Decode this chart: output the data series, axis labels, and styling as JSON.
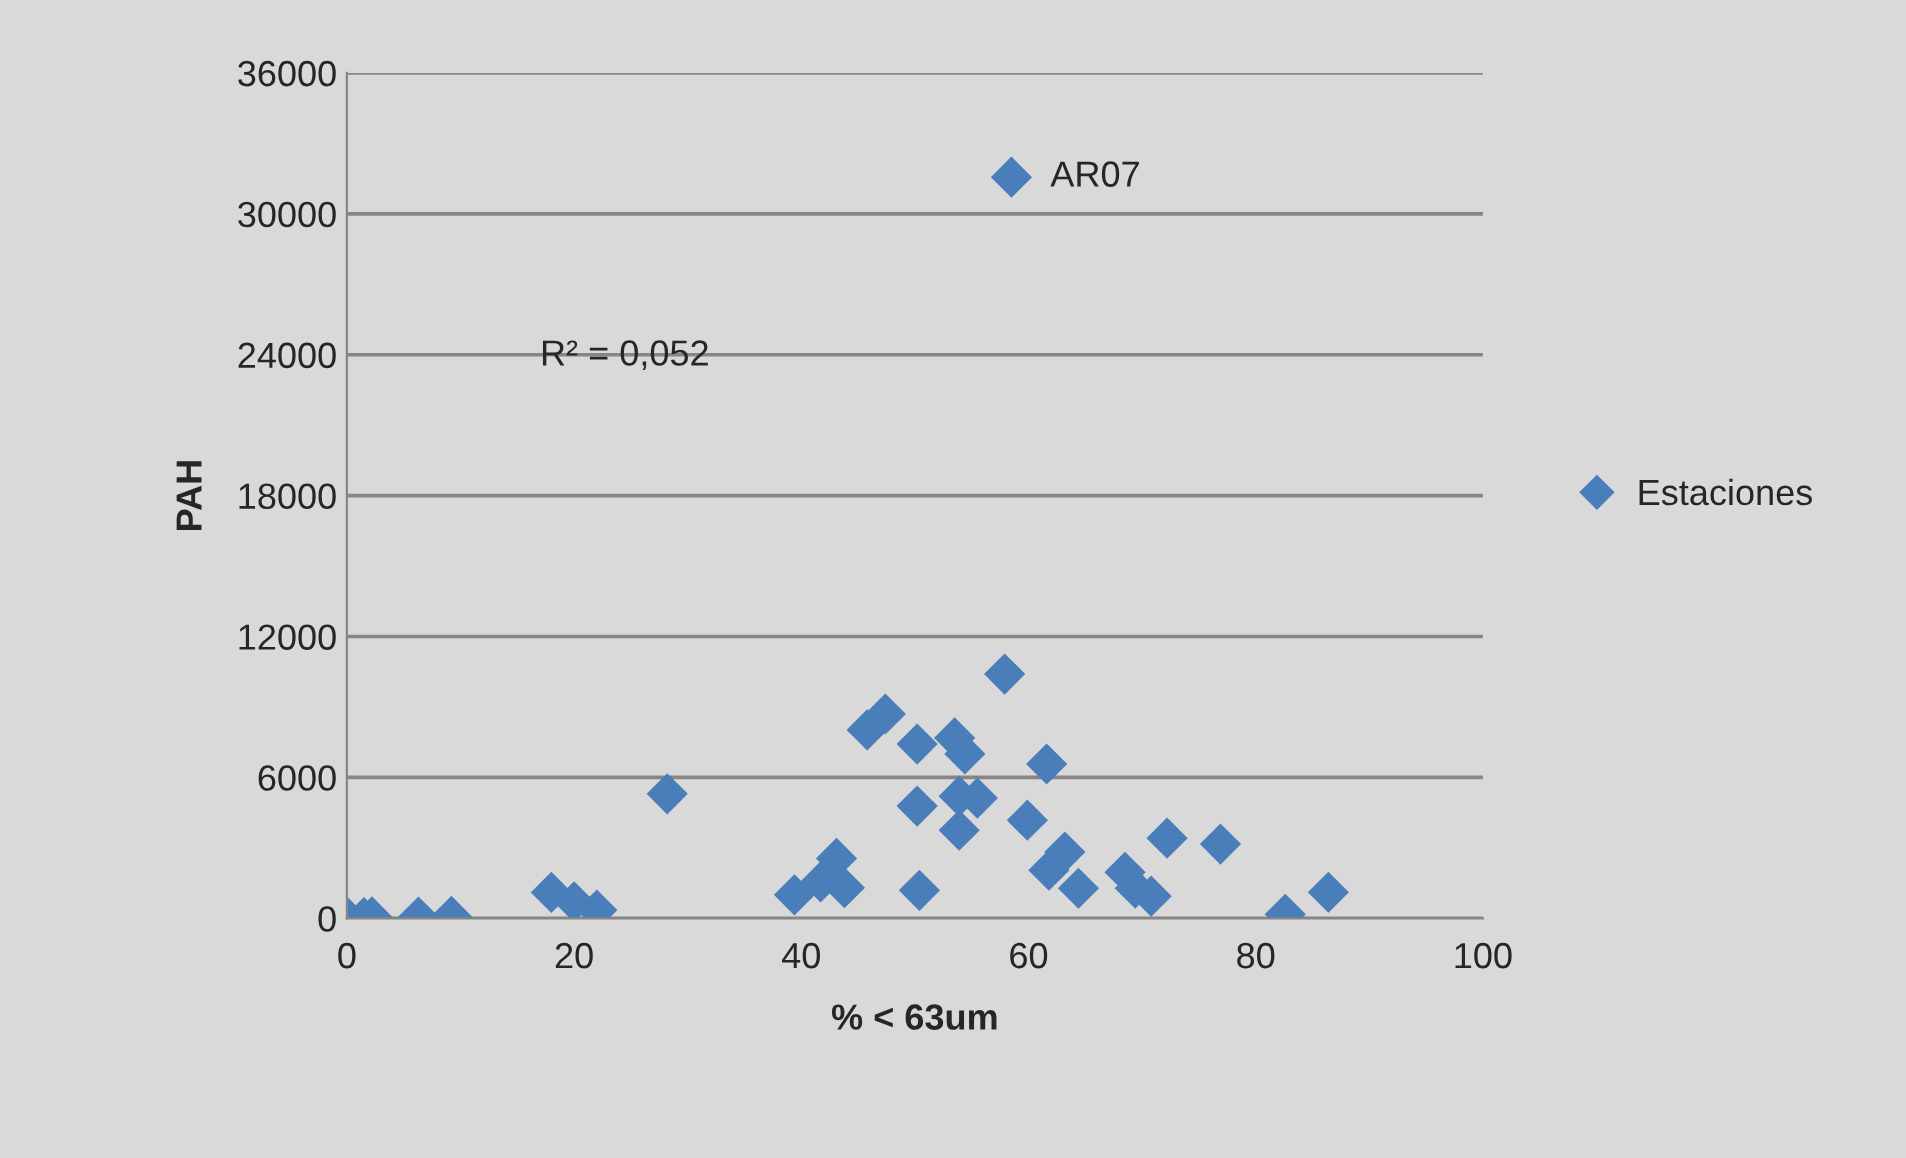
{
  "chart_data": {
    "type": "scatter",
    "xlabel": "% < 63um",
    "ylabel": "PAH",
    "xlim": [
      0,
      100
    ],
    "xticks": [
      0,
      20,
      40,
      60,
      80,
      100
    ],
    "ylim": [
      0,
      36000
    ],
    "yticks": [
      0,
      6000,
      12000,
      18000,
      24000,
      30000,
      36000
    ],
    "grid": "y",
    "legend": "right",
    "marker": "diamond",
    "series": [
      {
        "name": "Estaciones",
        "color": "#4a7ebb",
        "x": [
          0,
          1.5,
          2.2,
          6.3,
          9.2,
          18,
          20,
          22,
          28.2,
          39.4,
          41.7,
          43.1,
          43.8,
          45.8,
          47.4,
          50.2,
          53.5,
          54.4,
          57.9,
          61.6,
          50.2,
          53.9,
          55.5,
          53.9,
          59.9,
          50.4,
          61.8,
          63.2,
          64.4,
          68.5,
          69.4,
          70.8,
          72.2,
          76.9,
          82.6,
          86.4,
          58.5
        ],
        "values": [
          50,
          30,
          60,
          50,
          80,
          1100,
          700,
          350,
          5300,
          1000,
          1550,
          2550,
          1300,
          8020,
          8700,
          7420,
          7680,
          7000,
          10400,
          6570,
          4780,
          5200,
          5120,
          3750,
          4180,
          1190,
          2050,
          2820,
          1280,
          1960,
          1280,
          940,
          3410,
          3160,
          170,
          1110,
          31560
        ]
      }
    ],
    "annotations": [
      {
        "text": "AR07",
        "x": 58.5,
        "y": 31560
      },
      "R² = 0,052"
    ]
  }
}
